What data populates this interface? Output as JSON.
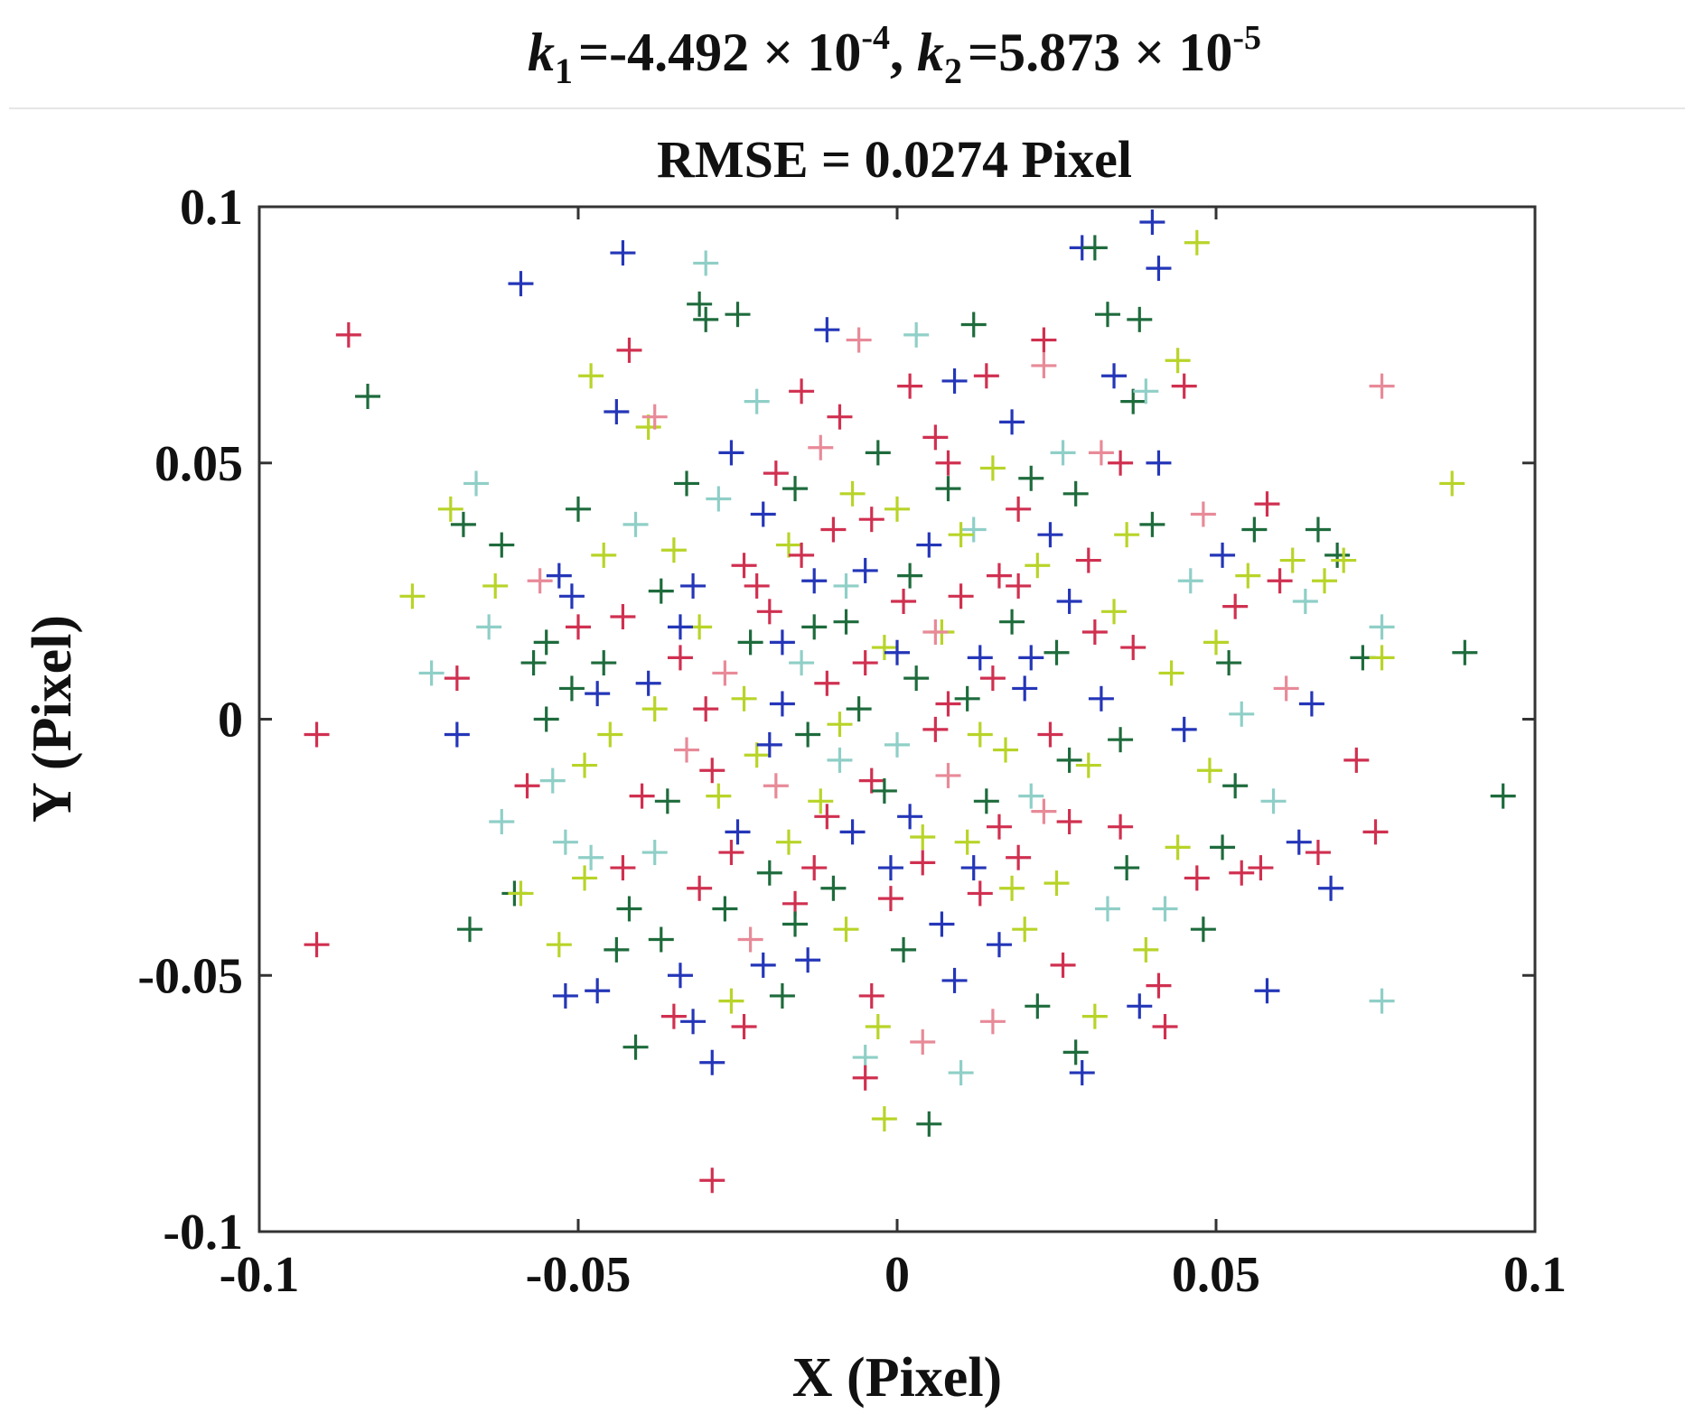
{
  "chart_data": {
    "type": "scatter",
    "marker": "plus",
    "title": {
      "k1_symbol": "k",
      "k1_sub": "1",
      "k1_value": "=-4.492 × 10",
      "k1_exp": "-4",
      "separator": ", ",
      "k2_symbol": "k",
      "k2_sub": "2",
      "k2_value": "=5.873 × 10",
      "k2_exp": "-5"
    },
    "subtitle": "RMSE = 0.0274 Pixel",
    "xlabel": "X (Pixel)",
    "ylabel": "Y (Pixel)",
    "xlim": [
      -0.1,
      0.1
    ],
    "ylim": [
      -0.1,
      0.1
    ],
    "xticks": [
      -0.1,
      -0.05,
      0,
      0.05,
      0.1
    ],
    "yticks": [
      -0.1,
      -0.05,
      0,
      0.05,
      0.1
    ],
    "xtick_labels": [
      "-0.1",
      "-0.05",
      "0",
      "0.05",
      "0.1"
    ],
    "ytick_labels": [
      "-0.1",
      "-0.05",
      "0",
      "0.05",
      "0.1"
    ],
    "grid": false,
    "legend": "none",
    "colors": [
      "#2436b8",
      "#1e6b3c",
      "#d03050",
      "#b8d428",
      "#8fcfc7",
      "#e88a98"
    ],
    "points": [
      [
        -0.091,
        -0.003,
        2
      ],
      [
        -0.091,
        -0.044,
        2
      ],
      [
        -0.086,
        0.075,
        2
      ],
      [
        -0.083,
        0.063,
        1
      ],
      [
        -0.076,
        0.024,
        3
      ],
      [
        -0.073,
        0.009,
        4
      ],
      [
        -0.07,
        0.041,
        3
      ],
      [
        -0.069,
        -0.003,
        0
      ],
      [
        -0.069,
        0.008,
        2
      ],
      [
        -0.068,
        0.038,
        1
      ],
      [
        -0.067,
        -0.041,
        1
      ],
      [
        -0.066,
        0.046,
        4
      ],
      [
        -0.064,
        0.018,
        4
      ],
      [
        -0.063,
        0.026,
        3
      ],
      [
        -0.062,
        0.034,
        1
      ],
      [
        -0.062,
        -0.02,
        4
      ],
      [
        -0.06,
        -0.034,
        1
      ],
      [
        -0.059,
        0.085,
        0
      ],
      [
        -0.059,
        -0.034,
        3
      ],
      [
        -0.058,
        -0.013,
        2
      ],
      [
        -0.057,
        0.011,
        1
      ],
      [
        -0.056,
        0.027,
        5
      ],
      [
        -0.055,
        0.015,
        1
      ],
      [
        -0.055,
        0.0,
        1
      ],
      [
        -0.054,
        -0.012,
        4
      ],
      [
        -0.053,
        0.028,
        0
      ],
      [
        -0.053,
        -0.044,
        3
      ],
      [
        -0.052,
        -0.024,
        4
      ],
      [
        -0.052,
        -0.054,
        0
      ],
      [
        -0.051,
        0.024,
        0
      ],
      [
        -0.051,
        0.006,
        1
      ],
      [
        -0.05,
        0.018,
        2
      ],
      [
        -0.05,
        0.041,
        1
      ],
      [
        -0.049,
        -0.031,
        3
      ],
      [
        -0.049,
        -0.009,
        3
      ],
      [
        -0.048,
        0.067,
        3
      ],
      [
        -0.048,
        -0.027,
        4
      ],
      [
        -0.047,
        -0.053,
        0
      ],
      [
        -0.047,
        0.005,
        0
      ],
      [
        -0.046,
        0.011,
        1
      ],
      [
        -0.046,
        0.032,
        3
      ],
      [
        -0.045,
        -0.003,
        3
      ],
      [
        -0.044,
        0.06,
        0
      ],
      [
        -0.044,
        -0.045,
        1
      ],
      [
        -0.043,
        0.091,
        0
      ],
      [
        -0.043,
        -0.029,
        2
      ],
      [
        -0.043,
        0.02,
        2
      ],
      [
        -0.042,
        0.072,
        2
      ],
      [
        -0.042,
        -0.037,
        1
      ],
      [
        -0.041,
        -0.064,
        1
      ],
      [
        -0.041,
        0.038,
        4
      ],
      [
        -0.04,
        -0.015,
        2
      ],
      [
        -0.039,
        0.007,
        0
      ],
      [
        -0.039,
        0.057,
        3
      ],
      [
        -0.038,
        0.059,
        5
      ],
      [
        -0.038,
        -0.026,
        4
      ],
      [
        -0.037,
        0.025,
        1
      ],
      [
        -0.037,
        -0.043,
        1
      ],
      [
        -0.036,
        -0.016,
        1
      ],
      [
        -0.035,
        0.033,
        3
      ],
      [
        -0.035,
        -0.058,
        2
      ],
      [
        -0.034,
        0.012,
        2
      ],
      [
        -0.034,
        -0.05,
        0
      ],
      [
        -0.033,
        0.046,
        1
      ],
      [
        -0.033,
        -0.006,
        5
      ],
      [
        -0.032,
        0.026,
        0
      ],
      [
        -0.032,
        -0.059,
        0
      ],
      [
        -0.031,
        0.081,
        1
      ],
      [
        -0.031,
        0.018,
        3
      ],
      [
        -0.031,
        -0.033,
        2
      ],
      [
        -0.03,
        0.002,
        2
      ],
      [
        -0.03,
        0.089,
        4
      ],
      [
        -0.03,
        0.078,
        1
      ],
      [
        -0.029,
        -0.09,
        2
      ],
      [
        -0.029,
        -0.067,
        0
      ],
      [
        -0.028,
        0.043,
        4
      ],
      [
        -0.028,
        -0.015,
        3
      ],
      [
        -0.027,
        0.009,
        5
      ],
      [
        -0.027,
        -0.037,
        1
      ],
      [
        -0.026,
        0.052,
        0
      ],
      [
        -0.026,
        -0.055,
        3
      ],
      [
        -0.025,
        0.079,
        1
      ],
      [
        -0.025,
        -0.022,
        0
      ],
      [
        -0.024,
        0.03,
        2
      ],
      [
        -0.024,
        -0.06,
        2
      ],
      [
        -0.023,
        0.015,
        1
      ],
      [
        -0.023,
        -0.043,
        5
      ],
      [
        -0.022,
        0.062,
        4
      ],
      [
        -0.022,
        -0.007,
        3
      ],
      [
        -0.021,
        0.04,
        0
      ],
      [
        -0.021,
        -0.048,
        0
      ],
      [
        -0.02,
        0.021,
        2
      ],
      [
        -0.02,
        -0.03,
        1
      ],
      [
        -0.019,
        0.048,
        2
      ],
      [
        -0.019,
        -0.013,
        5
      ],
      [
        -0.018,
        0.003,
        0
      ],
      [
        -0.018,
        -0.054,
        1
      ],
      [
        -0.017,
        0.034,
        3
      ],
      [
        -0.017,
        -0.024,
        3
      ],
      [
        -0.016,
        0.045,
        1
      ],
      [
        -0.016,
        -0.036,
        2
      ],
      [
        -0.015,
        0.011,
        4
      ],
      [
        -0.015,
        0.064,
        2
      ],
      [
        -0.014,
        -0.003,
        1
      ],
      [
        -0.014,
        -0.047,
        0
      ],
      [
        -0.013,
        0.027,
        0
      ],
      [
        -0.013,
        -0.029,
        2
      ],
      [
        -0.012,
        0.053,
        5
      ],
      [
        -0.012,
        -0.016,
        3
      ],
      [
        -0.011,
        0.076,
        0
      ],
      [
        -0.011,
        0.007,
        2
      ],
      [
        -0.01,
        -0.033,
        1
      ],
      [
        -0.01,
        0.037,
        2
      ],
      [
        -0.009,
        -0.008,
        4
      ],
      [
        -0.009,
        0.059,
        2
      ],
      [
        -0.008,
        0.019,
        1
      ],
      [
        -0.008,
        -0.041,
        3
      ],
      [
        -0.007,
        0.044,
        3
      ],
      [
        -0.007,
        -0.022,
        0
      ],
      [
        -0.006,
        0.074,
        5
      ],
      [
        -0.006,
        0.002,
        1
      ],
      [
        -0.005,
        -0.066,
        4
      ],
      [
        -0.005,
        -0.07,
        2
      ],
      [
        -0.005,
        0.029,
        0
      ],
      [
        -0.004,
        -0.054,
        2
      ],
      [
        -0.004,
        -0.012,
        2
      ],
      [
        -0.003,
        0.052,
        1
      ],
      [
        -0.003,
        -0.06,
        3
      ],
      [
        -0.002,
        0.014,
        3
      ],
      [
        -0.002,
        -0.078,
        3
      ],
      [
        -0.001,
        -0.035,
        2
      ],
      [
        0.0,
        0.041,
        3
      ],
      [
        0.0,
        -0.005,
        4
      ],
      [
        0.001,
        0.023,
        2
      ],
      [
        0.001,
        -0.045,
        1
      ],
      [
        0.002,
        0.065,
        2
      ],
      [
        0.002,
        -0.019,
        0
      ],
      [
        0.003,
        0.008,
        1
      ],
      [
        0.003,
        0.075,
        4
      ],
      [
        0.004,
        -0.063,
        5
      ],
      [
        0.004,
        -0.028,
        2
      ],
      [
        0.005,
        0.034,
        0
      ],
      [
        0.005,
        -0.079,
        1
      ],
      [
        0.006,
        -0.002,
        2
      ],
      [
        0.006,
        0.055,
        2
      ],
      [
        0.007,
        0.017,
        3
      ],
      [
        0.007,
        -0.04,
        0
      ],
      [
        0.008,
        0.045,
        1
      ],
      [
        0.008,
        -0.011,
        5
      ],
      [
        0.009,
        0.066,
        0
      ],
      [
        0.009,
        -0.051,
        0
      ],
      [
        0.01,
        0.024,
        2
      ],
      [
        0.01,
        -0.069,
        4
      ],
      [
        0.011,
        0.004,
        1
      ],
      [
        0.011,
        -0.024,
        3
      ],
      [
        0.012,
        0.077,
        1
      ],
      [
        0.012,
        0.037,
        4
      ],
      [
        0.013,
        -0.034,
        2
      ],
      [
        0.013,
        0.012,
        0
      ],
      [
        0.014,
        0.067,
        2
      ],
      [
        0.014,
        -0.016,
        1
      ],
      [
        0.015,
        0.049,
        3
      ],
      [
        0.015,
        -0.059,
        5
      ],
      [
        0.016,
        0.028,
        2
      ],
      [
        0.016,
        -0.044,
        0
      ],
      [
        0.017,
        -0.006,
        3
      ],
      [
        0.018,
        0.058,
        0
      ],
      [
        0.018,
        0.019,
        1
      ],
      [
        0.019,
        -0.027,
        2
      ],
      [
        0.019,
        0.041,
        2
      ],
      [
        0.02,
        -0.041,
        3
      ],
      [
        0.02,
        0.006,
        0
      ],
      [
        0.021,
        0.047,
        1
      ],
      [
        0.021,
        -0.015,
        4
      ],
      [
        0.022,
        0.03,
        3
      ],
      [
        0.022,
        -0.056,
        1
      ],
      [
        0.023,
        0.074,
        2
      ],
      [
        0.023,
        0.069,
        5
      ],
      [
        0.024,
        -0.003,
        2
      ],
      [
        0.024,
        0.036,
        0
      ],
      [
        0.025,
        -0.032,
        3
      ],
      [
        0.025,
        0.013,
        1
      ],
      [
        0.026,
        0.052,
        4
      ],
      [
        0.026,
        -0.048,
        2
      ],
      [
        0.027,
        0.023,
        0
      ],
      [
        0.027,
        -0.02,
        2
      ],
      [
        0.028,
        0.044,
        1
      ],
      [
        0.028,
        -0.065,
        1
      ],
      [
        0.029,
        0.092,
        0
      ],
      [
        0.029,
        -0.069,
        0
      ],
      [
        0.03,
        -0.009,
        3
      ],
      [
        0.03,
        0.031,
        2
      ],
      [
        0.031,
        0.092,
        1
      ],
      [
        0.031,
        -0.058,
        3
      ],
      [
        0.032,
        0.052,
        5
      ],
      [
        0.032,
        0.004,
        0
      ],
      [
        0.033,
        0.079,
        1
      ],
      [
        0.033,
        -0.037,
        4
      ],
      [
        0.034,
        0.067,
        0
      ],
      [
        0.034,
        0.021,
        3
      ],
      [
        0.035,
        -0.021,
        2
      ],
      [
        0.035,
        0.05,
        2
      ],
      [
        0.036,
        0.036,
        3
      ],
      [
        0.036,
        -0.029,
        1
      ],
      [
        0.037,
        0.062,
        1
      ],
      [
        0.037,
        0.014,
        2
      ],
      [
        0.038,
        0.078,
        1
      ],
      [
        0.038,
        -0.056,
        0
      ],
      [
        0.039,
        -0.045,
        3
      ],
      [
        0.039,
        0.064,
        4
      ],
      [
        0.04,
        0.097,
        0
      ],
      [
        0.04,
        0.038,
        1
      ],
      [
        0.041,
        0.088,
        0
      ],
      [
        0.041,
        0.05,
        0
      ],
      [
        0.041,
        -0.052,
        2
      ],
      [
        0.042,
        -0.06,
        2
      ],
      [
        0.042,
        -0.037,
        4
      ],
      [
        0.043,
        0.009,
        3
      ],
      [
        0.044,
        0.07,
        3
      ],
      [
        0.044,
        -0.025,
        3
      ],
      [
        0.045,
        -0.002,
        0
      ],
      [
        0.045,
        0.065,
        2
      ],
      [
        0.046,
        0.027,
        4
      ],
      [
        0.047,
        -0.031,
        2
      ],
      [
        0.047,
        0.093,
        3
      ],
      [
        0.048,
        0.04,
        5
      ],
      [
        0.048,
        -0.041,
        1
      ],
      [
        0.049,
        -0.01,
        3
      ],
      [
        0.05,
        0.015,
        3
      ],
      [
        0.051,
        -0.025,
        1
      ],
      [
        0.051,
        0.032,
        0
      ],
      [
        0.052,
        0.011,
        1
      ],
      [
        0.053,
        0.022,
        2
      ],
      [
        0.053,
        -0.013,
        1
      ],
      [
        0.054,
        0.001,
        4
      ],
      [
        0.054,
        -0.03,
        2
      ],
      [
        0.055,
        0.028,
        3
      ],
      [
        0.056,
        0.037,
        1
      ],
      [
        0.057,
        -0.029,
        2
      ],
      [
        0.058,
        0.042,
        2
      ],
      [
        0.058,
        -0.053,
        0
      ],
      [
        0.059,
        -0.016,
        4
      ],
      [
        0.06,
        0.027,
        2
      ],
      [
        0.061,
        0.006,
        5
      ],
      [
        0.062,
        0.031,
        3
      ],
      [
        0.063,
        -0.024,
        0
      ],
      [
        0.064,
        0.023,
        4
      ],
      [
        0.065,
        0.003,
        0
      ],
      [
        0.066,
        0.037,
        1
      ],
      [
        0.066,
        -0.026,
        2
      ],
      [
        0.067,
        0.027,
        3
      ],
      [
        0.068,
        -0.033,
        0
      ],
      [
        0.069,
        0.032,
        1
      ],
      [
        0.07,
        0.031,
        3
      ],
      [
        0.072,
        -0.008,
        2
      ],
      [
        0.073,
        0.012,
        1
      ],
      [
        0.075,
        -0.022,
        2
      ],
      [
        0.076,
        0.018,
        4
      ],
      [
        0.076,
        0.012,
        3
      ],
      [
        0.076,
        0.065,
        5
      ],
      [
        0.076,
        -0.055,
        4
      ],
      [
        0.087,
        0.046,
        3
      ],
      [
        0.089,
        0.013,
        1
      ],
      [
        0.095,
        -0.015,
        1
      ],
      [
        -0.005,
        0.011,
        2
      ],
      [
        0.008,
        0.003,
        2
      ],
      [
        -0.018,
        0.015,
        0
      ],
      [
        0.013,
        -0.003,
        3
      ],
      [
        0.002,
        0.028,
        1
      ],
      [
        -0.011,
        -0.019,
        2
      ],
      [
        0.021,
        0.012,
        0
      ],
      [
        -0.024,
        0.004,
        3
      ],
      [
        0.016,
        -0.021,
        2
      ],
      [
        -0.002,
        -0.014,
        1
      ],
      [
        0.006,
        0.017,
        5
      ],
      [
        -0.015,
        0.032,
        2
      ],
      [
        0.027,
        -0.008,
        1
      ],
      [
        -0.029,
        -0.01,
        2
      ],
      [
        0.01,
        0.036,
        3
      ],
      [
        -0.008,
        0.026,
        4
      ],
      [
        0.019,
        0.026,
        2
      ],
      [
        -0.02,
        -0.005,
        0
      ],
      [
        0.004,
        -0.023,
        3
      ],
      [
        -0.013,
        0.018,
        1
      ],
      [
        0.031,
        0.017,
        2
      ],
      [
        -0.034,
        0.018,
        0
      ],
      [
        0.012,
        -0.029,
        0
      ],
      [
        -0.004,
        0.039,
        2
      ],
      [
        0.023,
        -0.018,
        5
      ],
      [
        -0.026,
        -0.026,
        2
      ],
      [
        0.0,
        0.013,
        0
      ],
      [
        -0.009,
        -0.001,
        3
      ],
      [
        0.015,
        0.008,
        2
      ],
      [
        -0.038,
        0.002,
        3
      ],
      [
        0.035,
        -0.004,
        1
      ],
      [
        -0.001,
        -0.029,
        0
      ],
      [
        0.008,
        0.05,
        2
      ],
      [
        -0.022,
        0.026,
        2
      ],
      [
        0.018,
        -0.033,
        3
      ],
      [
        -0.016,
        -0.04,
        1
      ]
    ]
  }
}
